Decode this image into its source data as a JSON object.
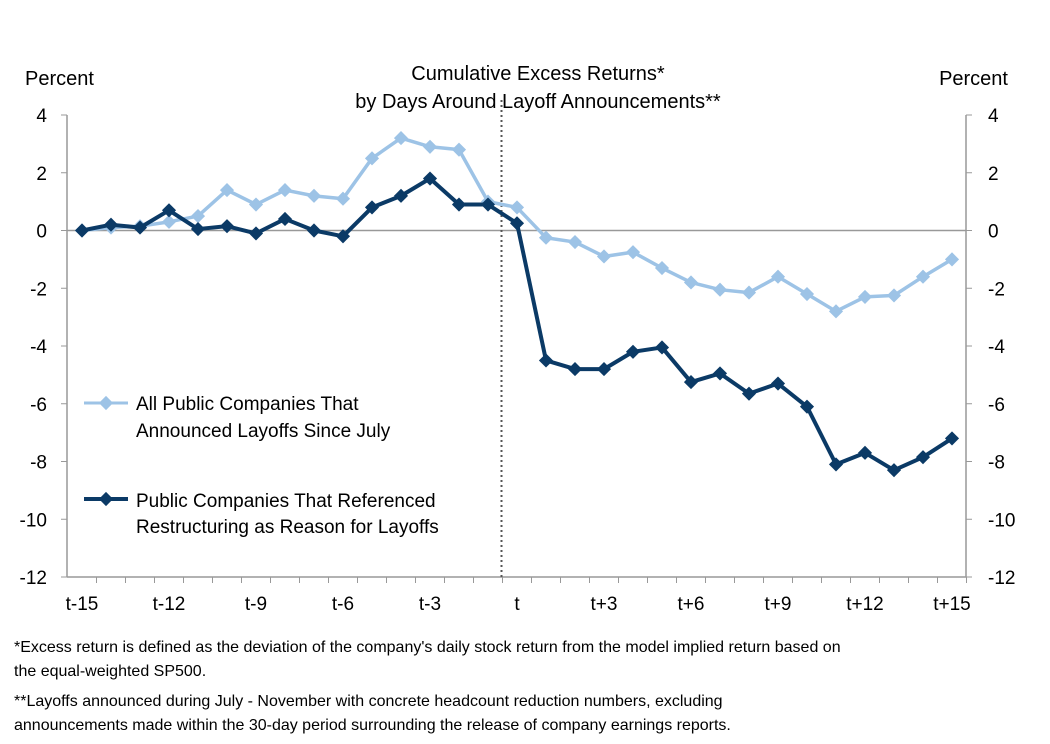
{
  "chart_data": {
    "type": "line",
    "title_lines": [
      "Cumulative  Excess Returns*",
      "by Days Around  Layoff  Announcements**"
    ],
    "ylabel_left": "Percent",
    "ylabel_right": "Percent",
    "ylim": [
      -12,
      4
    ],
    "yticks": [
      4,
      2,
      0,
      -2,
      -4,
      -6,
      -8,
      -10,
      -12
    ],
    "x": [
      "t-15",
      "t-14",
      "t-13",
      "t-12",
      "t-11",
      "t-10",
      "t-9",
      "t-8",
      "t-7",
      "t-6",
      "t-5",
      "t-4",
      "t-3",
      "t-2",
      "t-1",
      "t",
      "t+1",
      "t+2",
      "t+3",
      "t+4",
      "t+5",
      "t+6",
      "t+7",
      "t+8",
      "t+9",
      "t+10",
      "t+11",
      "t+12",
      "t+13",
      "t+14",
      "t+15"
    ],
    "xtick_labels": [
      "t-15",
      "t-12",
      "t-9",
      "t-6",
      "t-3",
      "t",
      "t+3",
      "t+6",
      "t+9",
      "t+12",
      "t+15"
    ],
    "event_marker": "t",
    "series": [
      {
        "name_lines": [
          "All Public Companies That",
          "Announced Layoffs Since July"
        ],
        "color": "#9dc3e6",
        "values": [
          0,
          0.1,
          0.15,
          0.3,
          0.5,
          1.4,
          0.9,
          1.4,
          1.2,
          1.1,
          2.5,
          3.2,
          2.9,
          2.8,
          1.0,
          0.8,
          -0.25,
          -0.4,
          -0.9,
          -0.75,
          -1.3,
          -1.8,
          -2.05,
          -2.15,
          -1.6,
          -2.2,
          -2.8,
          -2.3,
          -2.25,
          -1.6,
          -1.0
        ]
      },
      {
        "name_lines": [
          "Public Companies That Referenced",
          "Restructuring as Reason for Layoffs"
        ],
        "color": "#0b3a66",
        "values": [
          0,
          0.2,
          0.1,
          0.7,
          0.05,
          0.15,
          -0.1,
          0.4,
          0,
          -0.2,
          0.8,
          1.2,
          1.8,
          0.9,
          0.9,
          0.25,
          -4.5,
          -4.8,
          -4.8,
          -4.2,
          -4.05,
          -5.25,
          -4.95,
          -5.65,
          -5.3,
          -6.1,
          -8.1,
          -7.7,
          -8.3,
          -7.85,
          -7.2
        ]
      }
    ],
    "legend_placement": "left-center",
    "grid": false
  },
  "footnotes": [
    "*Excess return is defined as the deviation of the company's daily stock return from the model implied return based on",
    "the equal-weighted SP500.",
    "**Layoffs announced during July - November with concrete headcount reduction numbers, excluding",
    "announcements made within the 30-day period surrounding the release of company earnings reports."
  ]
}
